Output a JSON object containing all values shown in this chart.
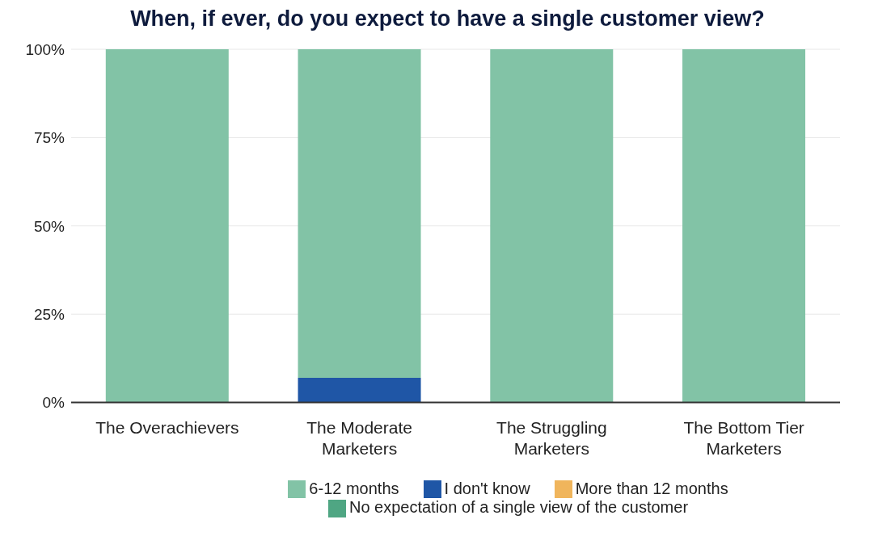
{
  "chart_data": {
    "type": "bar",
    "title": "When, if ever, do you expect to have a single customer view?",
    "categories": [
      "The Overachievers",
      "The Moderate Marketers",
      "The Struggling Marketers",
      "The Bottom Tier Marketers"
    ],
    "stacked": true,
    "series": [
      {
        "name": "I don't know",
        "color": "#1f56a6",
        "values": [
          0,
          7,
          0,
          0
        ]
      },
      {
        "name": "6-12 months",
        "color": "#82c3a6",
        "values": [
          100,
          93,
          100,
          100
        ]
      },
      {
        "name": "More than 12 months",
        "color": "#f0b55c",
        "values": [
          0,
          0,
          0,
          0
        ]
      },
      {
        "name": "No expectation of a single view of the customer",
        "color": "#4fa683",
        "values": [
          0,
          0,
          0,
          0
        ]
      }
    ],
    "ylim": [
      0,
      100
    ],
    "yticks": [
      {
        "value": 0,
        "label": "0%"
      },
      {
        "value": 25,
        "label": "25%"
      },
      {
        "value": 50,
        "label": "50%"
      },
      {
        "value": 75,
        "label": "75%"
      },
      {
        "value": 100,
        "label": "100%"
      }
    ],
    "grid": "y",
    "legend": "bottom"
  }
}
